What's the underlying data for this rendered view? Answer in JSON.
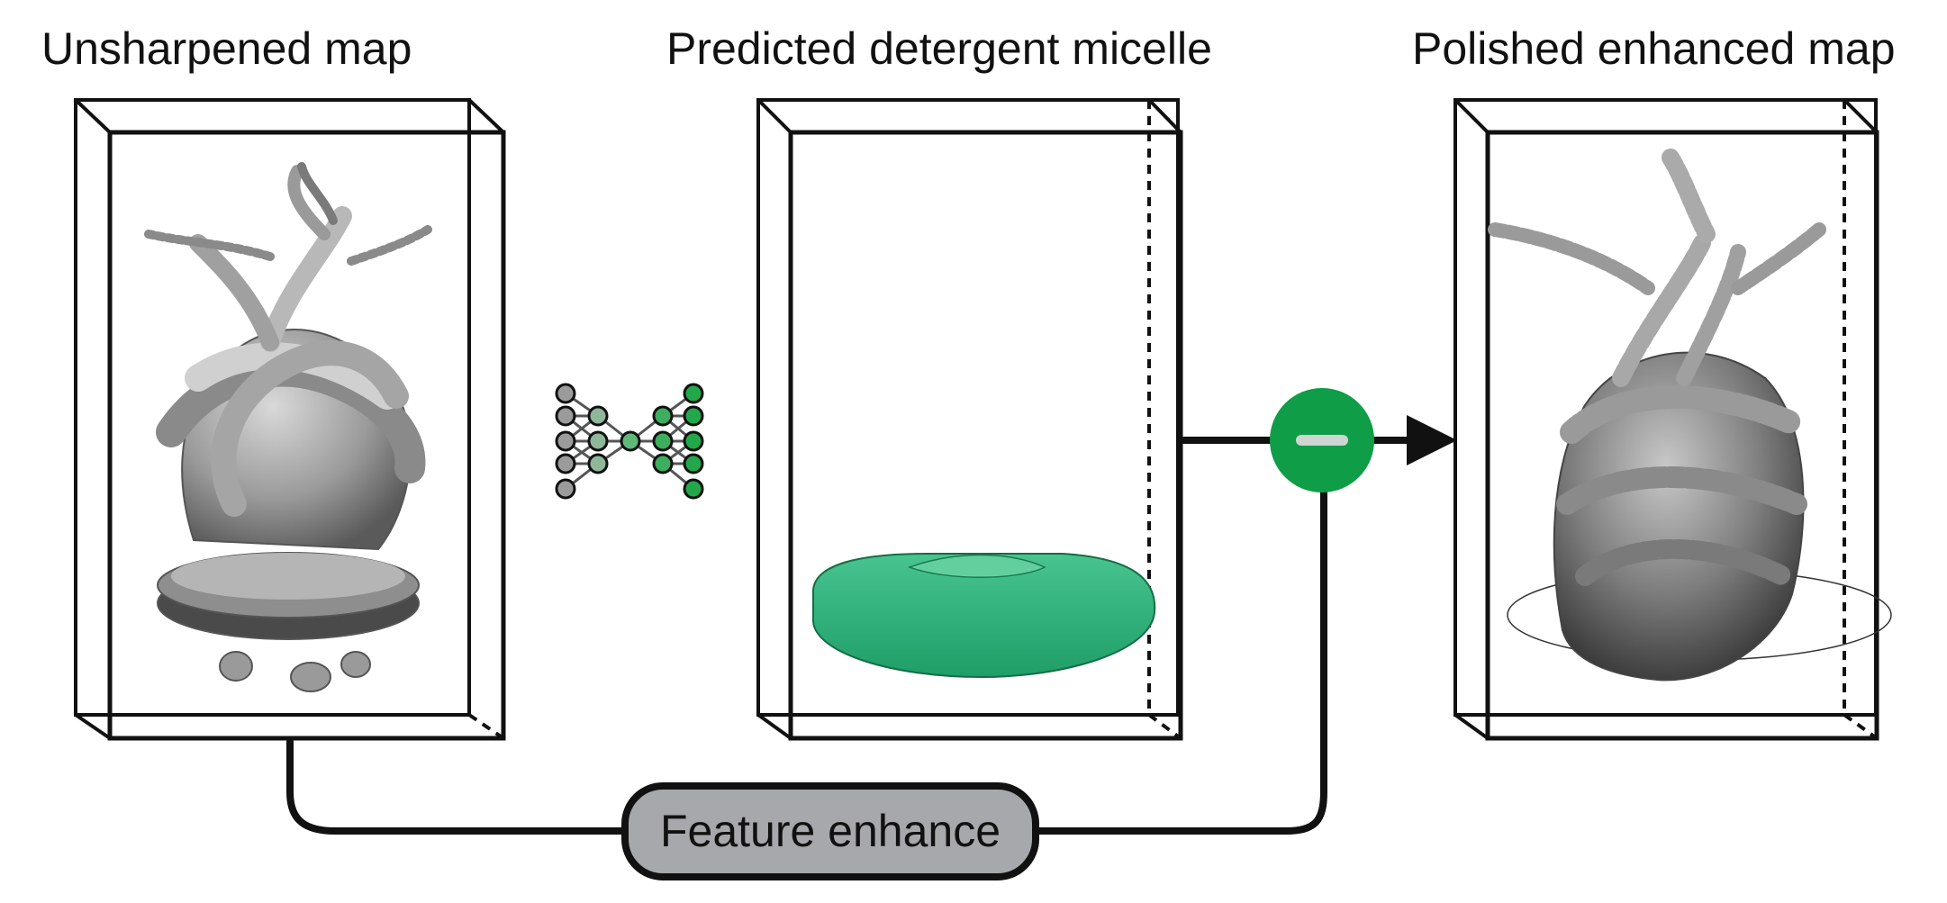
{
  "panels": {
    "unsharpened": {
      "title": "Unsharpened map"
    },
    "micelle": {
      "title": "Predicted detergent micelle"
    },
    "polished": {
      "title": "Polished enhanced map"
    }
  },
  "operation": {
    "label": "Feature enhance"
  },
  "colors": {
    "green": "#0f9d47",
    "micelle": "#2bb37a",
    "pill_fill": "#a7a8ab",
    "line": "#111111"
  },
  "icons": {
    "network": "encoder-decoder-network-icon",
    "subtract": "minus-circle-icon"
  }
}
